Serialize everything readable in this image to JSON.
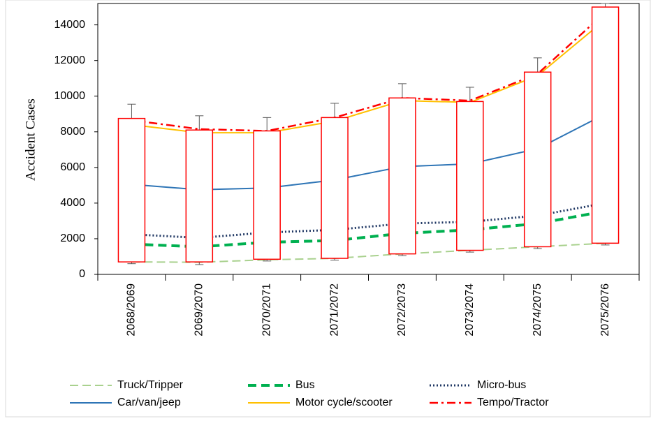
{
  "chart_data": {
    "type": "line",
    "y_label": "Accident  Cases",
    "categories": [
      "2068/2069",
      "2069/2070",
      "2070/2071",
      "2071/2072",
      "2072/2073",
      "2073/2074",
      "2074/2075",
      "2075/2076"
    ],
    "ylim": [
      0,
      15200
    ],
    "yticks": [
      0,
      2000,
      4000,
      6000,
      8000,
      10000,
      12000,
      14000
    ],
    "grid": false,
    "series": [
      {
        "name": "Truck/Tripper",
        "color": "#a9d18e",
        "style": "dashed",
        "values": [
          700,
          680,
          820,
          900,
          1150,
          1350,
          1550,
          1750
        ]
      },
      {
        "name": "Bus",
        "color": "#00b050",
        "style": "dashed-bold",
        "values": [
          1700,
          1550,
          1800,
          1900,
          2300,
          2500,
          2850,
          3550
        ]
      },
      {
        "name": "Micro-bus",
        "color": "#203864",
        "style": "dotted",
        "values": [
          2250,
          2050,
          2350,
          2500,
          2850,
          2950,
          3300,
          4000
        ]
      },
      {
        "name": "Car/van/jeep",
        "color": "#2e75b6",
        "style": "solid",
        "values": [
          5050,
          4750,
          4850,
          5300,
          6050,
          6200,
          7050,
          9000
        ]
      },
      {
        "name": "Motor cycle/scooter",
        "color": "#ffc000",
        "style": "solid",
        "values": [
          8400,
          7950,
          7950,
          8600,
          9750,
          9650,
          11150,
          14300
        ]
      },
      {
        "name": "Tempo/Tractor",
        "color": "#ff0000",
        "style": "dashdot",
        "values": [
          8650,
          8150,
          8050,
          8800,
          9900,
          9750,
          11250,
          14700
        ]
      }
    ],
    "boxes": {
      "color": "#ff0000",
      "whisker_low": [
        600,
        550,
        750,
        800,
        1050,
        1250,
        1450,
        1650
      ],
      "low": [
        700,
        700,
        850,
        900,
        1150,
        1350,
        1550,
        1750
      ],
      "high": [
        8750,
        8100,
        8050,
        8800,
        9900,
        9700,
        11350,
        15000
      ],
      "whisker_high": [
        9550,
        8900,
        8800,
        9600,
        10700,
        10500,
        12150,
        15200
      ]
    }
  }
}
